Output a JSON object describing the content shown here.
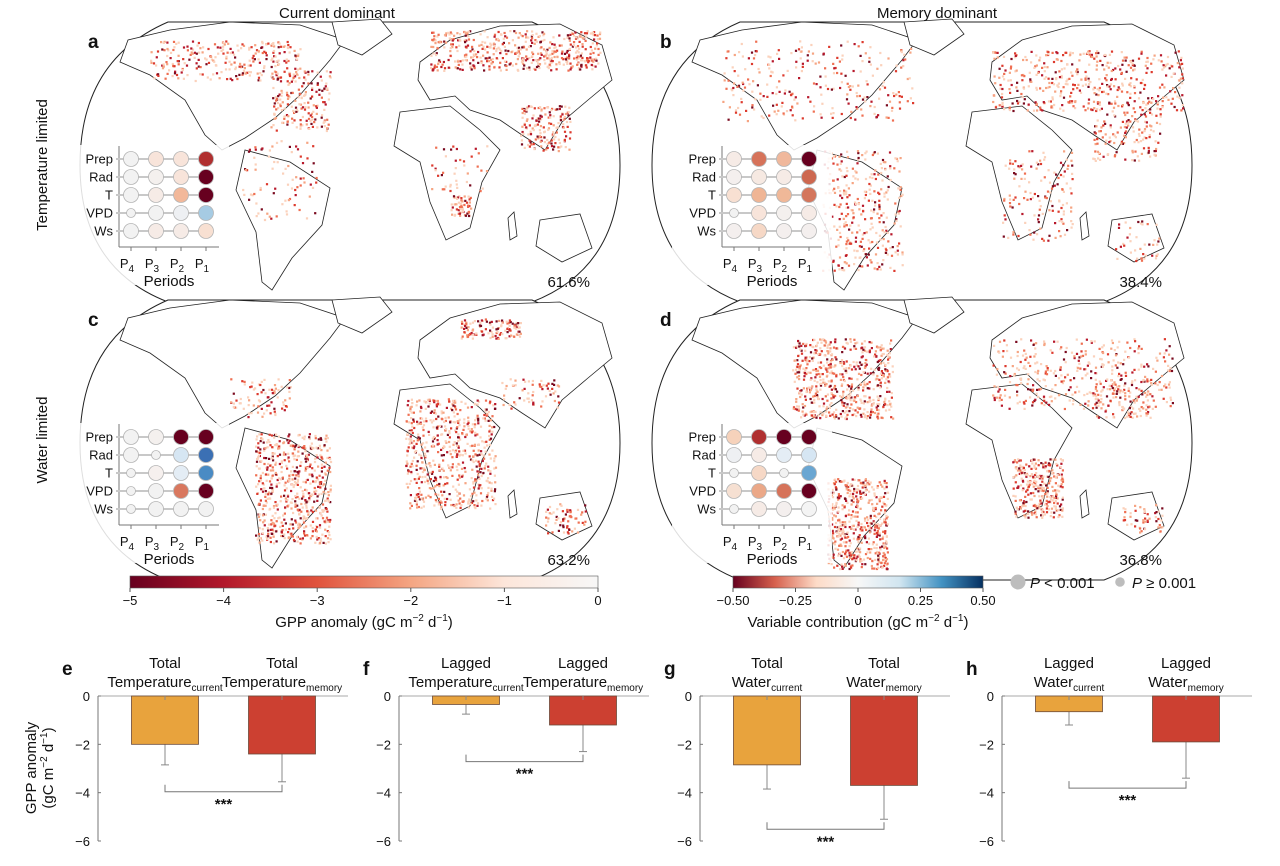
{
  "column_headers": [
    "Current dominant",
    "Memory dominant"
  ],
  "row_headers": [
    "Temperature limited",
    "Water limited"
  ],
  "maps": [
    {
      "letter": "a",
      "percent": "61.6%",
      "dots": [
        [
          [
            "#f2f2f2",
            "L"
          ],
          [
            "#f8e4da",
            "L"
          ],
          [
            "#f8e4da",
            "L"
          ],
          [
            "#b03030",
            "L"
          ]
        ],
        [
          [
            "#f2f2f2",
            "L"
          ],
          [
            "#f4f0ee",
            "L"
          ],
          [
            "#f8e4da",
            "L"
          ],
          [
            "#67001f",
            "L"
          ]
        ],
        [
          [
            "#f2f2f2",
            "L"
          ],
          [
            "#f6ebe6",
            "L"
          ],
          [
            "#f2b89a",
            "L"
          ],
          [
            "#67001f",
            "L"
          ]
        ],
        [
          [
            "#f2f2f2",
            "S"
          ],
          [
            "#f2f2f2",
            "L"
          ],
          [
            "#eef0f3",
            "L"
          ],
          [
            "#a6cbe3",
            "L"
          ]
        ],
        [
          [
            "#f2f2f2",
            "L"
          ],
          [
            "#f6ebe6",
            "L"
          ],
          [
            "#f6ebe6",
            "L"
          ],
          [
            "#f8e0d2",
            "L"
          ]
        ]
      ]
    },
    {
      "letter": "b",
      "percent": "38.4%",
      "dots": [
        [
          [
            "#f6ebe6",
            "L"
          ],
          [
            "#d6735a",
            "L"
          ],
          [
            "#f0b89c",
            "L"
          ],
          [
            "#67001f",
            "L"
          ]
        ],
        [
          [
            "#f4efee",
            "L"
          ],
          [
            "#f6e9e2",
            "L"
          ],
          [
            "#f6ebe6",
            "L"
          ],
          [
            "#cd6850",
            "L"
          ]
        ],
        [
          [
            "#f8e0d2",
            "L"
          ],
          [
            "#efb595",
            "L"
          ],
          [
            "#f0b898",
            "L"
          ],
          [
            "#d4765c",
            "L"
          ]
        ],
        [
          [
            "#f2f2f2",
            "S"
          ],
          [
            "#f8e4da",
            "L"
          ],
          [
            "#f4f0ee",
            "L"
          ],
          [
            "#f6ebe6",
            "L"
          ]
        ],
        [
          [
            "#f4efee",
            "L"
          ],
          [
            "#f6d8c6",
            "L"
          ],
          [
            "#f4efee",
            "L"
          ],
          [
            "#f4efee",
            "L"
          ]
        ]
      ]
    },
    {
      "letter": "c",
      "percent": "63.2%",
      "dots": [
        [
          [
            "#f2f2f2",
            "L"
          ],
          [
            "#f4f0ee",
            "L"
          ],
          [
            "#67001f",
            "L"
          ],
          [
            "#67001f",
            "L"
          ]
        ],
        [
          [
            "#f2f2f2",
            "L"
          ],
          [
            "#f2f2f2",
            "S"
          ],
          [
            "#d6e6f3",
            "L"
          ],
          [
            "#3b70b4",
            "L"
          ]
        ],
        [
          [
            "#f2f2f2",
            "S"
          ],
          [
            "#f6f0ee",
            "L"
          ],
          [
            "#e4edf5",
            "L"
          ],
          [
            "#4a8bc4",
            "L"
          ]
        ],
        [
          [
            "#f2f2f2",
            "S"
          ],
          [
            "#f2f2f2",
            "L"
          ],
          [
            "#d9785f",
            "L"
          ],
          [
            "#67001f",
            "L"
          ]
        ],
        [
          [
            "#f2f2f2",
            "S"
          ],
          [
            "#f2f2f2",
            "L"
          ],
          [
            "#f2f2f2",
            "L"
          ],
          [
            "#f2f2f2",
            "L"
          ]
        ]
      ]
    },
    {
      "letter": "d",
      "percent": "36.8%",
      "dots": [
        [
          [
            "#f6d2bb",
            "L"
          ],
          [
            "#b03030",
            "L"
          ],
          [
            "#67001f",
            "L"
          ],
          [
            "#67001f",
            "L"
          ]
        ],
        [
          [
            "#eef0f3",
            "L"
          ],
          [
            "#f6ebe6",
            "L"
          ],
          [
            "#e4edf5",
            "L"
          ],
          [
            "#d6e6f3",
            "L"
          ]
        ],
        [
          [
            "#f2f2f2",
            "S"
          ],
          [
            "#f6d8c6",
            "L"
          ],
          [
            "#f2f2f2",
            "S"
          ],
          [
            "#6aa6d2",
            "L"
          ]
        ],
        [
          [
            "#f6e0d2",
            "L"
          ],
          [
            "#eba888",
            "L"
          ],
          [
            "#d6735a",
            "L"
          ],
          [
            "#67001f",
            "L"
          ]
        ],
        [
          [
            "#f2f2f2",
            "S"
          ],
          [
            "#f6ebe6",
            "L"
          ],
          [
            "#f4efee",
            "L"
          ],
          [
            "#f4f4f4",
            "L"
          ]
        ]
      ]
    }
  ],
  "inset": {
    "variables": [
      "Prep",
      "Rad",
      "T",
      "VPD",
      "Ws"
    ],
    "periods": [
      {
        "p": "P",
        "sub": "4"
      },
      {
        "p": "P",
        "sub": "3"
      },
      {
        "p": "P",
        "sub": "2"
      },
      {
        "p": "P",
        "sub": "1"
      }
    ],
    "xlabel": "Periods"
  },
  "colorbar_gpp": {
    "ticks": [
      "−5",
      "−4",
      "−3",
      "−2",
      "−1",
      "0"
    ],
    "range": [
      -5,
      0
    ],
    "colors": [
      "#67001f",
      "#b2182b",
      "#e0533d",
      "#f4a582",
      "#fde6da",
      "#f7f7f7"
    ],
    "label": {
      "pre": "GPP anomaly (gC m",
      "sup1": "−2",
      "mid": " d",
      "sup2": "−1",
      "post": ")"
    }
  },
  "colorbar_var": {
    "ticks": [
      "−0.50",
      "−0.25",
      "0",
      "0.25",
      "0.50"
    ],
    "range": [
      -0.5,
      0.5
    ],
    "colors": [
      "#67001f",
      "#d6604d",
      "#fddbc7",
      "#f7f7f7",
      "#d1e5f0",
      "#4393c3",
      "#053061"
    ],
    "label": {
      "pre": "Variable contribution (gC m",
      "sup1": "−2",
      "mid": " d",
      "sup2": "−1",
      "post": ")"
    }
  },
  "legend": [
    {
      "label_i": "P",
      "label_rest": " < 0.001",
      "size": "large",
      "color": "#bdbdbd"
    },
    {
      "label_i": "P",
      "label_rest": " ≥ 0.001",
      "size": "small",
      "color": "#bdbdbd"
    }
  ],
  "chart_data": [
    {
      "type": "bar",
      "panel": "e",
      "ylabel": {
        "l1": "GPP anomaly",
        "pre": "(gC m",
        "sup1": "−2",
        "mid": " d",
        "sup2": "−1",
        "post": ")"
      },
      "ylim": [
        -6,
        0
      ],
      "yticks": [
        "0",
        "−2",
        "−4",
        "−6"
      ],
      "ytick_values": [
        0,
        -2,
        -4,
        -6
      ],
      "categories": [
        {
          "top": "Total",
          "base": "Temperature",
          "sub": "current"
        },
        {
          "top": "Total",
          "base": "Temperature",
          "sub": "memory"
        }
      ],
      "values": [
        -2.0,
        -2.4
      ],
      "error_low": [
        -2.85,
        -3.55
      ],
      "colors": [
        "#e8a33d",
        "#cc4031"
      ],
      "significance": "***"
    },
    {
      "type": "bar",
      "panel": "f",
      "ylim": [
        -6,
        0
      ],
      "yticks": [
        "0",
        "−2",
        "−4",
        "−6"
      ],
      "ytick_values": [
        0,
        -2,
        -4,
        -6
      ],
      "categories": [
        {
          "top": "Lagged",
          "base": "Temperature",
          "sub": "current"
        },
        {
          "top": "Lagged",
          "base": "Temperature",
          "sub": "memory"
        }
      ],
      "values": [
        -0.35,
        -1.2
      ],
      "error_low": [
        -0.75,
        -2.3
      ],
      "colors": [
        "#e8a33d",
        "#cc4031"
      ],
      "significance": "***"
    },
    {
      "type": "bar",
      "panel": "g",
      "ylim": [
        -6,
        0
      ],
      "yticks": [
        "0",
        "−2",
        "−4",
        "−6"
      ],
      "ytick_values": [
        0,
        -2,
        -4,
        -6
      ],
      "categories": [
        {
          "top": "Total",
          "base": "Water",
          "sub": "current"
        },
        {
          "top": "Total",
          "base": "Water",
          "sub": "memory"
        }
      ],
      "values": [
        -2.85,
        -3.7
      ],
      "error_low": [
        -3.85,
        -5.1
      ],
      "colors": [
        "#e8a33d",
        "#cc4031"
      ],
      "significance": "***"
    },
    {
      "type": "bar",
      "panel": "h",
      "ylim": [
        -6,
        0
      ],
      "yticks": [
        "0",
        "−2",
        "−4",
        "−6"
      ],
      "ytick_values": [
        0,
        -2,
        -4,
        -6
      ],
      "categories": [
        {
          "top": "Lagged",
          "base": "Water",
          "sub": "current"
        },
        {
          "top": "Lagged",
          "base": "Water",
          "sub": "memory"
        }
      ],
      "values": [
        -0.65,
        -1.9
      ],
      "error_low": [
        -1.2,
        -3.4
      ],
      "colors": [
        "#e8a33d",
        "#cc4031"
      ],
      "significance": "***"
    }
  ]
}
